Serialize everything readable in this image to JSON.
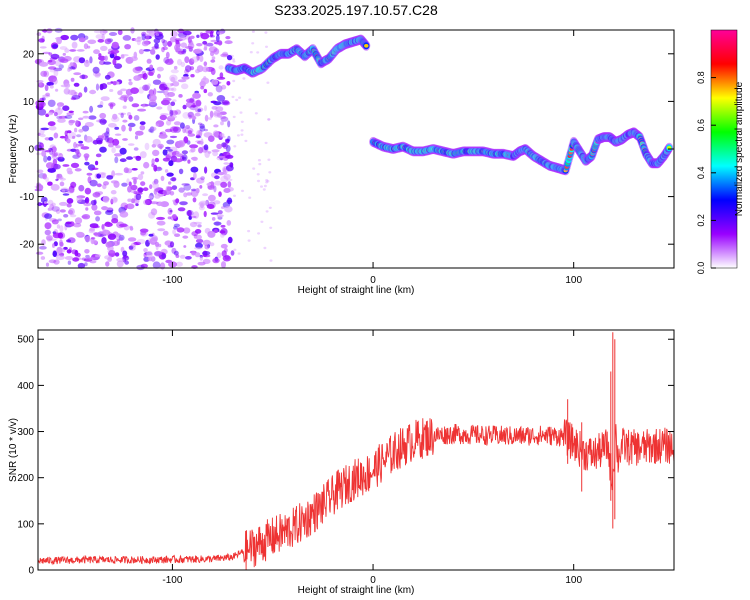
{
  "title": "S233.2025.197.10.57.C28",
  "chart_data": [
    {
      "type": "heatmap",
      "xlabel": "Height of straight line (km)",
      "ylabel": "Frequency (Hz)",
      "xlim": [
        -167,
        150
      ],
      "ylim": [
        -25,
        25
      ],
      "xticks": [
        -100,
        0,
        100
      ],
      "yticks": [
        -20,
        -10,
        0,
        10,
        20
      ],
      "colorbar": {
        "label": "Normalized spectral amplitude",
        "range": [
          0,
          1
        ],
        "ticks": [
          0,
          0.2,
          0.4,
          0.6,
          0.8
        ],
        "colors": [
          "#ffffff",
          "#9900ff",
          "#0000ff",
          "#00ffff",
          "#00ff00",
          "#ffff00",
          "#ff0000",
          "#ff0099"
        ]
      },
      "noise_region_x": [
        -167,
        -70
      ],
      "ridge_segments": [
        {
          "x": [
            -72,
            -68,
            -64,
            -60,
            -55,
            -50,
            -46,
            -42,
            -38,
            -34,
            -30,
            -26,
            -22,
            -18,
            -14,
            -10,
            -6,
            -3
          ],
          "y": [
            17,
            16.5,
            17,
            16,
            17,
            19,
            20,
            20,
            21,
            19.5,
            21,
            18,
            19,
            21,
            22,
            22.5,
            23,
            21.5
          ]
        },
        {
          "x": [
            0,
            5,
            10,
            15,
            20,
            25,
            30,
            35,
            40,
            45,
            50,
            55,
            60,
            65,
            70,
            73,
            76,
            80,
            84,
            88,
            92,
            96,
            100,
            103,
            106,
            109,
            112,
            115,
            118,
            121,
            124,
            127,
            130,
            133,
            136,
            139,
            142,
            145,
            148
          ],
          "y": [
            1.5,
            0.5,
            0,
            0.5,
            -0.5,
            -0.5,
            0,
            -0.5,
            -1,
            -0.5,
            -0.5,
            -0.5,
            -1,
            -1,
            -1.5,
            -0.5,
            0,
            -1.5,
            -2.5,
            -3.5,
            -4,
            -4.5,
            1.5,
            -0.5,
            -2.5,
            -1.5,
            2,
            2.5,
            2.5,
            1.5,
            2,
            3,
            3.5,
            2.5,
            -1,
            -3,
            -3,
            -1.5,
            0.5
          ]
        }
      ]
    },
    {
      "type": "line",
      "xlabel": "Height of straight line (km)",
      "ylabel": "SNR (10 * v/v)",
      "xlim": [
        -167,
        150
      ],
      "ylim": [
        0,
        520
      ],
      "xticks": [
        -100,
        0,
        100
      ],
      "yticks": [
        0,
        100,
        200,
        300,
        400,
        500
      ],
      "color": "#ee3333",
      "series": [
        {
          "x": [
            -167,
            -140,
            -110,
            -80,
            -70,
            -62,
            -55,
            -48,
            -40,
            -32,
            -25,
            -18,
            -10,
            -2,
            5,
            12,
            20,
            28,
            40,
            55,
            70,
            85,
            95,
            100,
            105,
            110,
            114,
            117,
            119,
            120,
            121,
            122,
            124,
            128,
            135,
            142,
            150
          ],
          "y": [
            20,
            22,
            22,
            24,
            28,
            45,
            60,
            75,
            90,
            115,
            140,
            170,
            195,
            210,
            235,
            260,
            280,
            290,
            295,
            292,
            290,
            292,
            290,
            275,
            255,
            250,
            260,
            270,
            200,
            230,
            300,
            240,
            270,
            265,
            265,
            270,
            268
          ]
        }
      ],
      "spikes": [
        {
          "x": 119.5,
          "low": 90,
          "high": 515
        },
        {
          "x": 120.5,
          "low": 110,
          "high": 500
        },
        {
          "x": 118.5,
          "low": 150,
          "high": 430
        },
        {
          "x": 104,
          "low": 170,
          "high": 320
        },
        {
          "x": 97,
          "low": 230,
          "high": 370
        }
      ]
    }
  ]
}
